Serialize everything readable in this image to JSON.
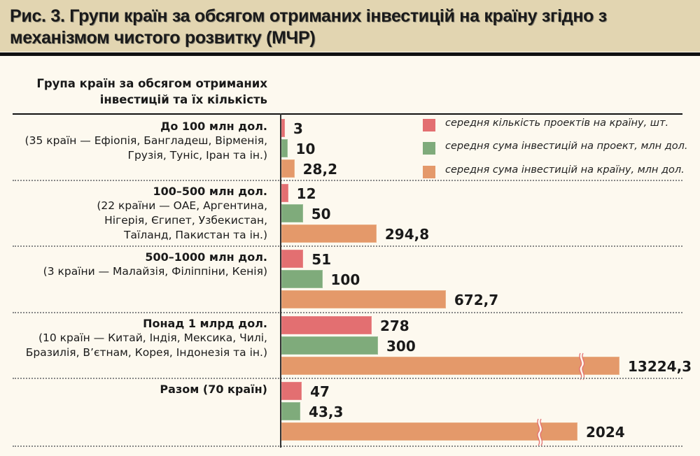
{
  "title": "Рис. 3. Групи країн за обсягом отриманих інвестицій на країну згідно з механізмом чистого розвитку (МЧР)",
  "colors": {
    "projects": "#e36f71",
    "per_project": "#7fab7b",
    "per_country": "#e4996a",
    "title_bg": "#e2d5b1",
    "background": "#fdf9ef"
  },
  "chart_data": {
    "type": "bar",
    "orientation": "horizontal",
    "title": "Рис. 3. Групи країн за обсягом отриманих інвестицій на країну згідно з механізмом чистого розвитку (МЧР)",
    "category_header": "Група країн за обсягом отриманих інвестицій та їх кількість",
    "legend_position": "top-right",
    "grid": false,
    "axis_break_on": [
      "13224,3",
      "2024"
    ],
    "categories": [
      {
        "name": "До 100 млн дол.",
        "detail": "(35 країн — Ефіопія, Бангладеш, Вірменія, Грузія, Туніс, Іран та ін.)"
      },
      {
        "name": "100–500 млн дол.",
        "detail": "(22 країни — ОАЕ, Аргентина, Нігерія, Єгипет, Узбекистан, Таїланд, Пакистан та ін.)"
      },
      {
        "name": "500–1000 млн дол.",
        "detail": "(3 країни — Малайзія, Філіппіни, Кенія)"
      },
      {
        "name": "Понад 1 млрд дол.",
        "detail": "(10 країн — Китай, Індія, Мексика, Чилі, Бразилія, В’єтнам, Корея, Індонезія та ін.)"
      },
      {
        "name": "Разом (70 країн)",
        "detail": ""
      }
    ],
    "series": [
      {
        "name": "середня кількість проектів на країну, шт.",
        "values": [
          3,
          12,
          51,
          278,
          47
        ],
        "labels": [
          "3",
          "12",
          "51",
          "278",
          "47"
        ]
      },
      {
        "name": "середня сума інвестицій на проект, млн дол.",
        "values": [
          10,
          50,
          100,
          300,
          43.3
        ],
        "labels": [
          "10",
          "50",
          "100",
          "300",
          "43,3"
        ]
      },
      {
        "name": "середня сума інвестицій на країну, млн дол.",
        "values": [
          28.2,
          294.8,
          672.7,
          13224.3,
          2024
        ],
        "labels": [
          "28,2",
          "294,8",
          "672,7",
          "13224,3",
          "2024"
        ]
      }
    ]
  }
}
